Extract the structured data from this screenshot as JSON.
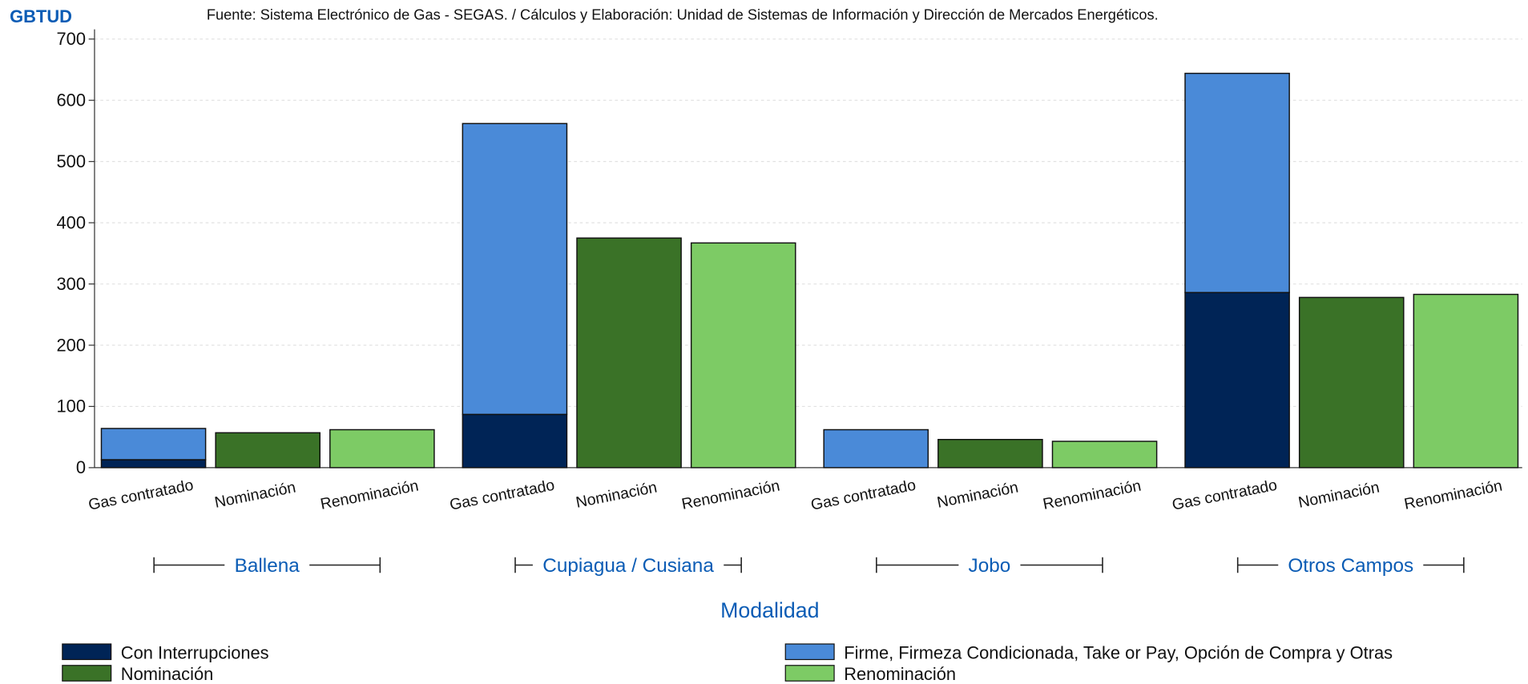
{
  "chart_data": {
    "type": "bar",
    "stacked": true,
    "unit_label": "GBTUD",
    "source": "Fuente: Sistema Electrónico de Gas - SEGAS. / Cálculos y Elaboración: Unidad de Sistemas de Información y Dirección de Mercados Energéticos.",
    "x_label": "Modalidad",
    "groups": [
      "Ballena",
      "Cupiagua / Cusiana",
      "Jobo",
      "Otros Campos"
    ],
    "categories": [
      "Gas contratado",
      "Nominación",
      "Renominación",
      "Gas contratado",
      "Nominación",
      "Renominación",
      "Gas contratado",
      "Nominación",
      "Renominación",
      "Gas contratado",
      "Nominación",
      "Renominación"
    ],
    "series": [
      {
        "name": "Con Interrupciones",
        "color": "#002456",
        "values": [
          13,
          null,
          null,
          87,
          null,
          null,
          null,
          null,
          null,
          286,
          null,
          null
        ]
      },
      {
        "name": "Firme, Firmeza Condicionada, Take or Pay, Opción de Compra y Otras",
        "color": "#4a8ad8",
        "values": [
          51,
          null,
          null,
          475,
          null,
          null,
          62,
          null,
          null,
          358,
          null,
          null
        ]
      },
      {
        "name": "Nominación",
        "color": "#3a7227",
        "values": [
          null,
          57,
          null,
          null,
          375,
          null,
          null,
          46,
          null,
          null,
          278,
          null
        ]
      },
      {
        "name": "Renominación",
        "color": "#7dcb65",
        "values": [
          null,
          null,
          62,
          null,
          null,
          367,
          null,
          null,
          43,
          null,
          null,
          283
        ]
      }
    ],
    "ylim": [
      0,
      700
    ],
    "yticks": [
      0,
      100,
      200,
      300,
      400,
      500,
      600,
      700
    ],
    "grid": true,
    "legend": "bottom"
  }
}
